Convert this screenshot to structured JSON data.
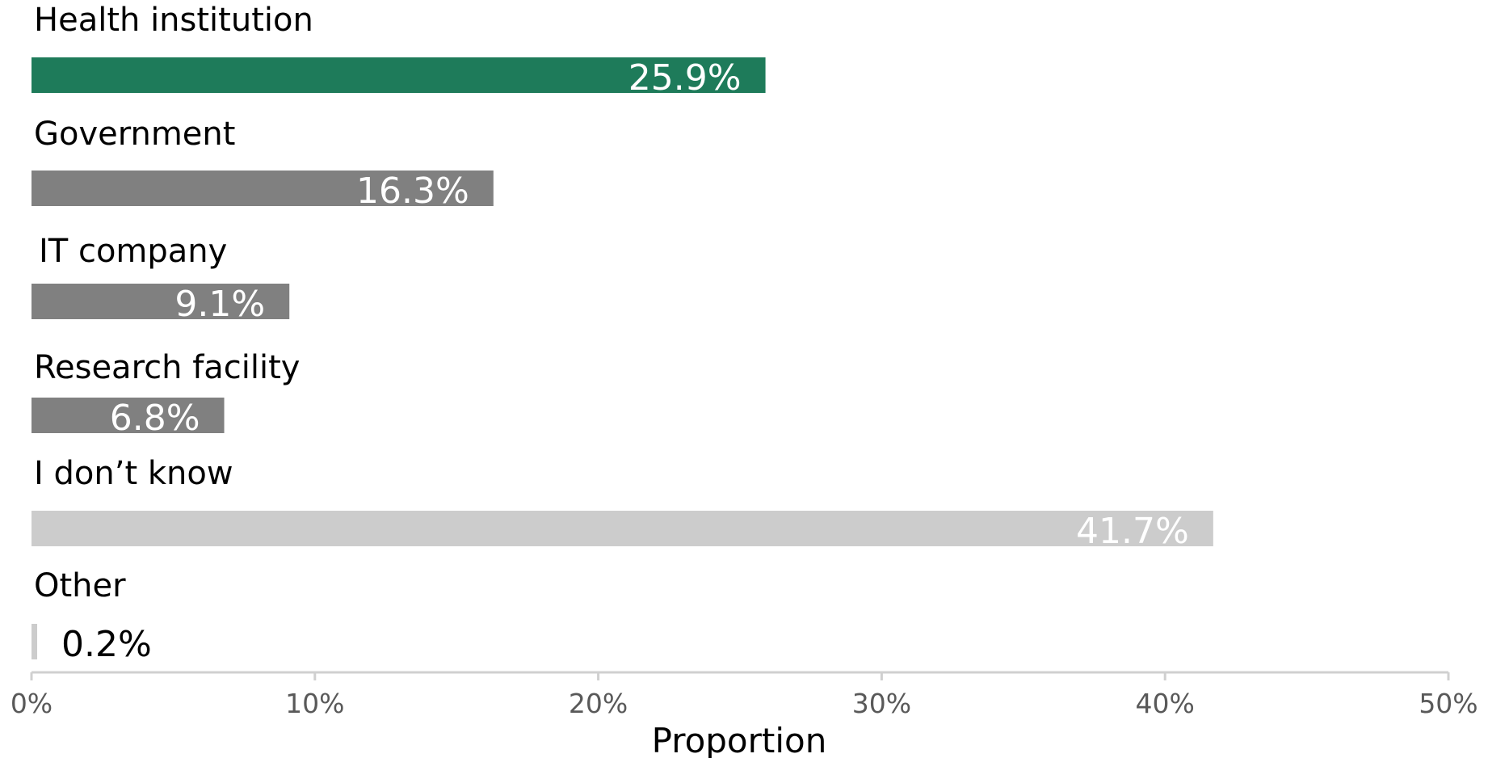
{
  "chart_data": {
    "type": "bar",
    "orientation": "horizontal",
    "categories": [
      "Health institution",
      "Government",
      "IT company",
      "Research facility",
      "I don’t know",
      "Other"
    ],
    "values": [
      25.9,
      16.3,
      9.1,
      6.8,
      41.7,
      0.2
    ],
    "data_labels": [
      "25.9%",
      "16.3%",
      "9.1%",
      "6.8%",
      "41.7%",
      "0.2%"
    ],
    "bar_colors": [
      "#1e7b5a",
      "#808080",
      "#808080",
      "#808080",
      "#cccccc",
      "#cccccc"
    ],
    "xlabel": "Proportion",
    "ylabel": "",
    "xlim": [
      0,
      50
    ],
    "x_ticks": [
      0,
      10,
      20,
      30,
      40,
      50
    ],
    "x_tick_labels": [
      "0%",
      "10%",
      "20%",
      "30%",
      "40%",
      "50%"
    ],
    "grid": false,
    "legend": "none",
    "axis_color": "#d0d0d0"
  }
}
